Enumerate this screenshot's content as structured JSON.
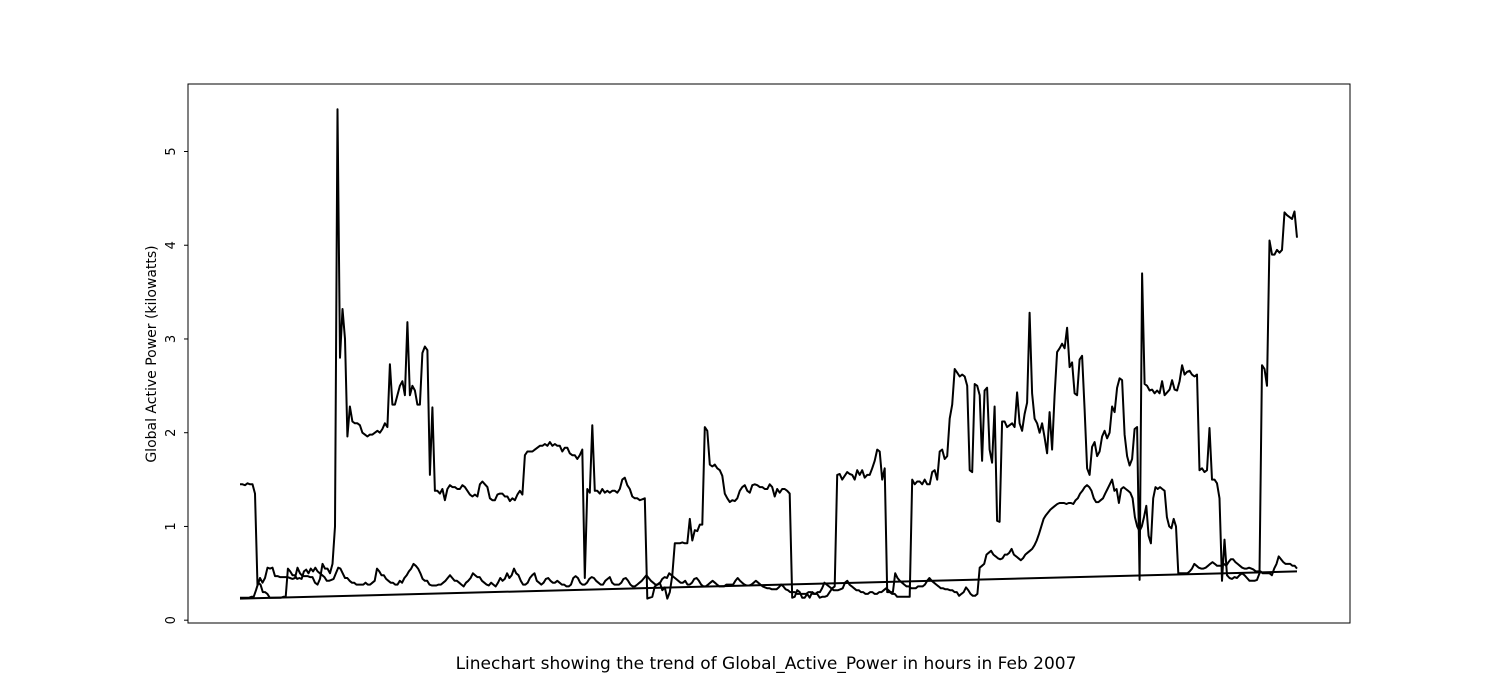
{
  "chart_data": {
    "type": "line",
    "title": "",
    "caption": "Linechart showing the trend of Global_Active_Power in hours in Feb 2007",
    "xlabel": "",
    "ylabel": "Global Active Power (kilowatts)",
    "x_tick_labels": [],
    "ylim": [
      -0.03,
      5.72
    ],
    "yticks": [
      0,
      1,
      2,
      3,
      4,
      5
    ],
    "grid": false,
    "legend": "none",
    "line_color": "#000000",
    "series": [
      {
        "values": [
          1.45,
          1.45,
          1.44,
          1.46,
          1.45,
          1.45,
          1.35,
          0.37,
          0.45,
          0.4,
          0.45,
          0.56,
          0.55,
          0.56,
          0.47,
          0.47,
          0.46,
          0.46,
          0.46,
          0.46,
          0.45,
          0.44,
          0.45,
          0.56,
          0.5,
          0.47,
          0.47,
          0.47,
          0.46,
          0.46,
          0.4,
          0.38,
          0.44,
          0.6,
          0.55,
          0.55,
          0.5,
          0.6,
          1.0,
          5.45,
          2.8,
          3.32,
          3.0,
          1.96,
          2.28,
          2.12,
          2.1,
          2.1,
          2.08,
          2.0,
          1.98,
          1.96,
          1.98,
          1.98,
          2.0,
          2.02,
          2.0,
          2.04,
          2.1,
          2.06,
          2.73,
          2.3,
          2.3,
          2.4,
          2.5,
          2.55,
          2.4,
          3.18,
          2.4,
          2.5,
          2.45,
          2.3,
          2.3,
          2.85,
          2.92,
          2.88,
          1.55,
          2.27,
          1.38,
          1.38,
          1.35,
          1.4,
          1.28,
          1.4,
          1.44,
          1.42,
          1.42,
          1.4,
          1.4,
          1.44,
          1.42,
          1.38,
          1.34,
          1.32,
          1.34,
          1.32,
          1.45,
          1.48,
          1.45,
          1.42,
          1.3,
          1.28,
          1.28,
          1.34,
          1.35,
          1.35,
          1.32,
          1.32,
          1.27,
          1.3,
          1.28,
          1.34,
          1.38,
          1.34,
          1.76,
          1.8,
          1.8,
          1.8,
          1.82,
          1.84,
          1.86,
          1.86,
          1.88,
          1.86,
          1.9,
          1.86,
          1.88,
          1.86,
          1.86,
          1.8,
          1.84,
          1.84,
          1.78,
          1.76,
          1.76,
          1.72,
          1.76,
          1.82,
          0.45,
          1.4,
          1.36,
          2.08,
          1.38,
          1.38,
          1.35,
          1.4,
          1.36,
          1.38,
          1.36,
          1.38,
          1.38,
          1.36,
          1.4,
          1.5,
          1.52,
          1.44,
          1.4,
          1.32,
          1.3,
          1.3,
          1.28,
          1.29,
          1.3,
          0.23,
          0.24,
          0.25,
          0.36,
          0.38,
          0.4,
          0.32,
          0.35,
          0.23,
          0.3,
          0.48,
          0.82,
          0.82,
          0.82,
          0.83,
          0.82,
          0.82,
          1.08,
          0.85,
          0.96,
          0.95,
          1.02,
          1.02,
          2.06,
          2.02,
          1.66,
          1.64,
          1.66,
          1.62,
          1.6,
          1.54,
          1.35,
          1.3,
          1.26,
          1.28,
          1.27,
          1.3,
          1.38,
          1.42,
          1.44,
          1.38,
          1.36,
          1.44,
          1.45,
          1.44,
          1.42,
          1.42,
          1.4,
          1.4,
          1.45,
          1.42,
          1.32,
          1.4,
          1.36,
          1.4,
          1.4,
          1.38,
          1.35,
          0.24,
          0.25,
          0.32,
          0.3,
          0.24,
          0.24,
          0.28,
          0.24,
          0.3,
          0.28,
          0.28,
          0.24,
          0.25,
          0.25,
          0.26,
          0.3,
          0.34,
          0.36,
          1.55,
          1.56,
          1.5,
          1.54,
          1.58,
          1.56,
          1.55,
          1.5,
          1.6,
          1.55,
          1.6,
          1.52,
          1.55,
          1.55,
          1.62,
          1.7,
          1.82,
          1.8,
          1.5,
          1.62,
          0.3,
          0.3,
          0.28,
          0.28,
          0.25,
          0.25,
          0.25,
          0.25,
          0.25,
          0.25,
          1.5,
          1.45,
          1.48,
          1.48,
          1.45,
          1.5,
          1.45,
          1.45,
          1.58,
          1.6,
          1.5,
          1.8,
          1.82,
          1.72,
          1.75,
          2.15,
          2.3,
          2.68,
          2.64,
          2.6,
          2.62,
          2.6,
          2.5,
          1.6,
          1.58,
          2.52,
          2.5,
          2.4,
          1.7,
          2.45,
          2.48,
          1.82,
          1.68,
          2.28,
          1.06,
          1.05,
          2.12,
          2.12,
          2.06,
          2.08,
          2.1,
          2.06,
          2.43,
          2.1,
          2.02,
          2.2,
          2.32,
          3.28,
          2.42,
          2.15,
          2.1,
          2.0,
          2.1,
          1.95,
          1.78,
          2.22,
          1.82,
          2.4,
          2.86,
          2.9,
          2.95,
          2.9,
          3.12,
          2.7,
          2.75,
          2.42,
          2.4,
          2.78,
          2.82,
          2.25,
          1.62,
          1.55,
          1.85,
          1.9,
          1.75,
          1.8,
          1.96,
          2.02,
          1.94,
          2.0,
          2.28,
          2.22,
          2.48,
          2.58,
          2.56,
          1.98,
          1.75,
          1.65,
          1.72,
          2.04,
          2.06,
          0.43,
          3.7,
          2.52,
          2.5,
          2.45,
          2.46,
          2.42,
          2.45,
          2.42,
          2.55,
          2.4,
          2.43,
          2.46,
          2.56,
          2.46,
          2.45,
          2.55,
          2.72,
          2.62,
          2.65,
          2.66,
          2.62,
          2.6,
          2.62,
          1.6,
          1.62,
          1.58,
          1.6,
          2.05,
          1.5,
          1.5,
          1.46,
          1.3,
          0.42,
          0.86,
          0.48,
          0.45,
          0.44,
          0.46,
          0.45,
          0.48,
          0.5,
          0.48,
          0.45,
          0.42,
          0.42,
          0.42,
          0.43,
          0.5,
          2.72,
          2.68,
          2.5,
          4.05,
          3.9,
          3.9,
          3.95,
          3.92,
          3.95,
          4.35,
          4.32,
          4.3,
          4.28,
          4.36,
          4.08
        ]
      },
      {
        "values": [
          0.24,
          0.24,
          0.24,
          0.24,
          0.24,
          0.25,
          0.25,
          0.32,
          0.4,
          0.38,
          0.3,
          0.3,
          0.28,
          0.24,
          0.24,
          0.24,
          0.24,
          0.24,
          0.24,
          0.25,
          0.25,
          0.55,
          0.52,
          0.48,
          0.48,
          0.44,
          0.45,
          0.44,
          0.52,
          0.54,
          0.5,
          0.55,
          0.52,
          0.56,
          0.52,
          0.5,
          0.48,
          0.46,
          0.42,
          0.42,
          0.43,
          0.44,
          0.5,
          0.56,
          0.55,
          0.5,
          0.45,
          0.45,
          0.42,
          0.4,
          0.4,
          0.38,
          0.38,
          0.38,
          0.38,
          0.4,
          0.38,
          0.38,
          0.4,
          0.42,
          0.55,
          0.52,
          0.48,
          0.48,
          0.44,
          0.42,
          0.4,
          0.4,
          0.38,
          0.38,
          0.42,
          0.4,
          0.45,
          0.48,
          0.52,
          0.55,
          0.6,
          0.58,
          0.55,
          0.5,
          0.44,
          0.42,
          0.42,
          0.38,
          0.37,
          0.37,
          0.37,
          0.38,
          0.38,
          0.4,
          0.42,
          0.45,
          0.48,
          0.45,
          0.42,
          0.42,
          0.4,
          0.38,
          0.36,
          0.4,
          0.42,
          0.45,
          0.5,
          0.48,
          0.46,
          0.46,
          0.42,
          0.4,
          0.38,
          0.37,
          0.4,
          0.38,
          0.36,
          0.4,
          0.45,
          0.42,
          0.44,
          0.5,
          0.45,
          0.48,
          0.55,
          0.5,
          0.48,
          0.42,
          0.38,
          0.38,
          0.4,
          0.45,
          0.48,
          0.5,
          0.42,
          0.4,
          0.38,
          0.4,
          0.44,
          0.45,
          0.42,
          0.4,
          0.4,
          0.42,
          0.4,
          0.38,
          0.38,
          0.36,
          0.36,
          0.38,
          0.45,
          0.47,
          0.45,
          0.4,
          0.38,
          0.38,
          0.4,
          0.44,
          0.46,
          0.45,
          0.42,
          0.4,
          0.38,
          0.38,
          0.42,
          0.44,
          0.46,
          0.4,
          0.38,
          0.38,
          0.38,
          0.4,
          0.44,
          0.45,
          0.42,
          0.38,
          0.36,
          0.36,
          0.38,
          0.4,
          0.42,
          0.45,
          0.48,
          0.45,
          0.42,
          0.4,
          0.38,
          0.38,
          0.4,
          0.44,
          0.46,
          0.45,
          0.5,
          0.48,
          0.46,
          0.44,
          0.42,
          0.4,
          0.4,
          0.42,
          0.38,
          0.38,
          0.4,
          0.44,
          0.45,
          0.42,
          0.38,
          0.36,
          0.36,
          0.38,
          0.4,
          0.42,
          0.4,
          0.38,
          0.36,
          0.36,
          0.36,
          0.38,
          0.38,
          0.38,
          0.38,
          0.42,
          0.45,
          0.42,
          0.4,
          0.38,
          0.37,
          0.37,
          0.38,
          0.4,
          0.42,
          0.4,
          0.38,
          0.36,
          0.35,
          0.34,
          0.34,
          0.33,
          0.33,
          0.33,
          0.35,
          0.38,
          0.36,
          0.33,
          0.32,
          0.3,
          0.3,
          0.3,
          0.28,
          0.28,
          0.28,
          0.28,
          0.28,
          0.3,
          0.3,
          0.28,
          0.28,
          0.3,
          0.3,
          0.34,
          0.4,
          0.38,
          0.36,
          0.34,
          0.32,
          0.32,
          0.32,
          0.33,
          0.34,
          0.4,
          0.42,
          0.38,
          0.36,
          0.34,
          0.32,
          0.32,
          0.3,
          0.3,
          0.28,
          0.28,
          0.3,
          0.3,
          0.28,
          0.28,
          0.3,
          0.3,
          0.32,
          0.34,
          0.32,
          0.3,
          0.3,
          0.5,
          0.45,
          0.42,
          0.4,
          0.38,
          0.36,
          0.36,
          0.34,
          0.34,
          0.34,
          0.36,
          0.36,
          0.36,
          0.38,
          0.42,
          0.45,
          0.42,
          0.4,
          0.38,
          0.36,
          0.34,
          0.34,
          0.33,
          0.33,
          0.32,
          0.32,
          0.3,
          0.3,
          0.26,
          0.28,
          0.3,
          0.35,
          0.32,
          0.28,
          0.26,
          0.26,
          0.28,
          0.56,
          0.58,
          0.6,
          0.7,
          0.72,
          0.74,
          0.7,
          0.68,
          0.66,
          0.65,
          0.66,
          0.7,
          0.7,
          0.72,
          0.76,
          0.7,
          0.68,
          0.66,
          0.64,
          0.66,
          0.7,
          0.72,
          0.74,
          0.76,
          0.8,
          0.85,
          0.92,
          1.0,
          1.08,
          1.12,
          1.15,
          1.18,
          1.2,
          1.22,
          1.24,
          1.25,
          1.25,
          1.25,
          1.24,
          1.25,
          1.25,
          1.24,
          1.28,
          1.3,
          1.35,
          1.38,
          1.42,
          1.44,
          1.42,
          1.38,
          1.3,
          1.26,
          1.26,
          1.28,
          1.3,
          1.35,
          1.4,
          1.45,
          1.5,
          1.38,
          1.4,
          1.25,
          1.4,
          1.42,
          1.4,
          1.38,
          1.36,
          1.3,
          1.1,
          1.0,
          0.95,
          1.0,
          1.1,
          1.22,
          0.9,
          0.82,
          1.3,
          1.42,
          1.4,
          1.42,
          1.4,
          1.38,
          1.1,
          1.0,
          0.98,
          1.08,
          1.0,
          0.5,
          0.5,
          0.5,
          0.5,
          0.5,
          0.52,
          0.55,
          0.6,
          0.58,
          0.56,
          0.55,
          0.55,
          0.56,
          0.58,
          0.6,
          0.62,
          0.6,
          0.58,
          0.58,
          0.58,
          0.6,
          0.58,
          0.62,
          0.65,
          0.65,
          0.62,
          0.6,
          0.58,
          0.56,
          0.55,
          0.55,
          0.56,
          0.55,
          0.54,
          0.52,
          0.52,
          0.52,
          0.5,
          0.5,
          0.5,
          0.5,
          0.48,
          0.55,
          0.6,
          0.68,
          0.65,
          0.62,
          0.6,
          0.6,
          0.6,
          0.58,
          0.58,
          0.55
        ]
      },
      {
        "values": [
          0.23,
          0.52
        ]
      }
    ]
  }
}
